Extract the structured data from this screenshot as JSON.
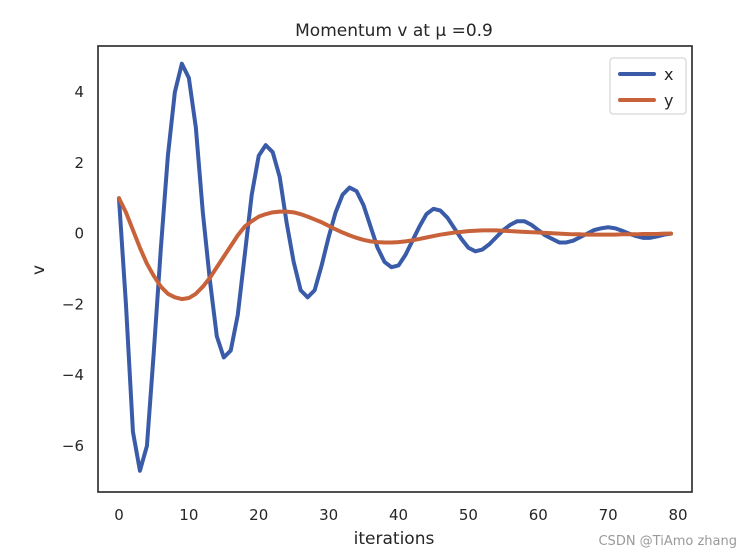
{
  "chart_data": {
    "type": "line",
    "title": "Momentum v at μ =0.9",
    "xlabel": "iterations",
    "ylabel": "v",
    "xlim": [
      -3,
      82
    ],
    "ylim": [
      -7.3,
      5.3
    ],
    "xticks": [
      0,
      10,
      20,
      30,
      40,
      50,
      60,
      70,
      80
    ],
    "yticks": [
      -6,
      -4,
      -2,
      0,
      2,
      4
    ],
    "grid": false,
    "legend": "top-right",
    "series": [
      {
        "name": "x",
        "color": "#3a5ba8",
        "points": [
          [
            0,
            1.0
          ],
          [
            1,
            -2.0
          ],
          [
            2,
            -5.6
          ],
          [
            3,
            -6.7
          ],
          [
            4,
            -6.0
          ],
          [
            5,
            -3.3
          ],
          [
            6,
            -0.4
          ],
          [
            7,
            2.2
          ],
          [
            8,
            4.0
          ],
          [
            9,
            4.8
          ],
          [
            10,
            4.4
          ],
          [
            11,
            3.0
          ],
          [
            12,
            0.6
          ],
          [
            13,
            -1.3
          ],
          [
            14,
            -2.9
          ],
          [
            15,
            -3.5
          ],
          [
            16,
            -3.3
          ],
          [
            17,
            -2.3
          ],
          [
            18,
            -0.6
          ],
          [
            19,
            1.1
          ],
          [
            20,
            2.2
          ],
          [
            21,
            2.5
          ],
          [
            22,
            2.3
          ],
          [
            23,
            1.6
          ],
          [
            24,
            0.3
          ],
          [
            25,
            -0.8
          ],
          [
            26,
            -1.6
          ],
          [
            27,
            -1.8
          ],
          [
            28,
            -1.6
          ],
          [
            29,
            -0.9
          ],
          [
            30,
            -0.1
          ],
          [
            31,
            0.6
          ],
          [
            32,
            1.1
          ],
          [
            33,
            1.3
          ],
          [
            34,
            1.2
          ],
          [
            35,
            0.8
          ],
          [
            36,
            0.2
          ],
          [
            37,
            -0.4
          ],
          [
            38,
            -0.8
          ],
          [
            39,
            -0.95
          ],
          [
            40,
            -0.9
          ],
          [
            41,
            -0.6
          ],
          [
            42,
            -0.2
          ],
          [
            43,
            0.2
          ],
          [
            44,
            0.55
          ],
          [
            45,
            0.7
          ],
          [
            46,
            0.65
          ],
          [
            47,
            0.45
          ],
          [
            48,
            0.15
          ],
          [
            49,
            -0.15
          ],
          [
            50,
            -0.4
          ],
          [
            51,
            -0.5
          ],
          [
            52,
            -0.45
          ],
          [
            53,
            -0.3
          ],
          [
            54,
            -0.1
          ],
          [
            55,
            0.1
          ],
          [
            56,
            0.25
          ],
          [
            57,
            0.35
          ],
          [
            58,
            0.35
          ],
          [
            59,
            0.25
          ],
          [
            60,
            0.1
          ],
          [
            61,
            -0.05
          ],
          [
            62,
            -0.15
          ],
          [
            63,
            -0.25
          ],
          [
            64,
            -0.25
          ],
          [
            65,
            -0.2
          ],
          [
            66,
            -0.1
          ],
          [
            67,
            0.0
          ],
          [
            68,
            0.1
          ],
          [
            69,
            0.15
          ],
          [
            70,
            0.18
          ],
          [
            71,
            0.15
          ],
          [
            72,
            0.08
          ],
          [
            73,
            0.0
          ],
          [
            74,
            -0.07
          ],
          [
            75,
            -0.12
          ],
          [
            76,
            -0.12
          ],
          [
            77,
            -0.08
          ],
          [
            78,
            -0.03
          ],
          [
            79,
            0.0
          ]
        ]
      },
      {
        "name": "y",
        "color": "#c8623a",
        "points": [
          [
            0,
            1.0
          ],
          [
            1,
            0.6
          ],
          [
            2,
            0.1
          ],
          [
            3,
            -0.4
          ],
          [
            4,
            -0.85
          ],
          [
            5,
            -1.2
          ],
          [
            6,
            -1.5
          ],
          [
            7,
            -1.7
          ],
          [
            8,
            -1.8
          ],
          [
            9,
            -1.85
          ],
          [
            10,
            -1.82
          ],
          [
            11,
            -1.7
          ],
          [
            12,
            -1.5
          ],
          [
            13,
            -1.25
          ],
          [
            14,
            -0.95
          ],
          [
            15,
            -0.65
          ],
          [
            16,
            -0.35
          ],
          [
            17,
            -0.05
          ],
          [
            18,
            0.2
          ],
          [
            19,
            0.35
          ],
          [
            20,
            0.48
          ],
          [
            21,
            0.55
          ],
          [
            22,
            0.6
          ],
          [
            23,
            0.62
          ],
          [
            24,
            0.62
          ],
          [
            25,
            0.6
          ],
          [
            26,
            0.55
          ],
          [
            27,
            0.48
          ],
          [
            28,
            0.4
          ],
          [
            29,
            0.32
          ],
          [
            30,
            0.22
          ],
          [
            31,
            0.12
          ],
          [
            32,
            0.03
          ],
          [
            33,
            -0.05
          ],
          [
            34,
            -0.12
          ],
          [
            35,
            -0.18
          ],
          [
            36,
            -0.22
          ],
          [
            37,
            -0.24
          ],
          [
            38,
            -0.25
          ],
          [
            39,
            -0.25
          ],
          [
            40,
            -0.24
          ],
          [
            41,
            -0.22
          ],
          [
            42,
            -0.19
          ],
          [
            43,
            -0.15
          ],
          [
            44,
            -0.11
          ],
          [
            45,
            -0.07
          ],
          [
            46,
            -0.03
          ],
          [
            47,
            0.0
          ],
          [
            48,
            0.03
          ],
          [
            49,
            0.05
          ],
          [
            50,
            0.07
          ],
          [
            51,
            0.08
          ],
          [
            52,
            0.09
          ],
          [
            53,
            0.09
          ],
          [
            54,
            0.09
          ],
          [
            55,
            0.08
          ],
          [
            56,
            0.07
          ],
          [
            57,
            0.06
          ],
          [
            58,
            0.05
          ],
          [
            59,
            0.04
          ],
          [
            60,
            0.03
          ],
          [
            61,
            0.02
          ],
          [
            62,
            0.01
          ],
          [
            63,
            0.0
          ],
          [
            64,
            -0.01
          ],
          [
            65,
            -0.02
          ],
          [
            66,
            -0.02
          ],
          [
            67,
            -0.03
          ],
          [
            68,
            -0.03
          ],
          [
            69,
            -0.03
          ],
          [
            70,
            -0.03
          ],
          [
            71,
            -0.03
          ],
          [
            72,
            -0.02
          ],
          [
            73,
            -0.02
          ],
          [
            74,
            -0.02
          ],
          [
            75,
            -0.01
          ],
          [
            76,
            -0.01
          ],
          [
            77,
            -0.01
          ],
          [
            78,
            0.0
          ],
          [
            79,
            0.0
          ]
        ]
      }
    ]
  },
  "watermark": "CSDN @TiAmo zhang"
}
